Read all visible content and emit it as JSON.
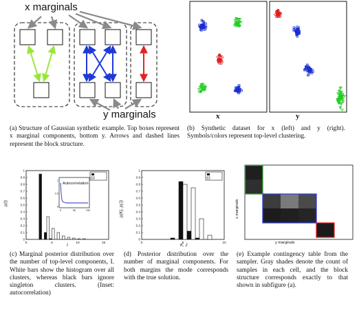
{
  "figure_a": {
    "top_label": "x marginals",
    "bottom_label": "y marginals",
    "caption": "(a) Structure of Gaussian synthetic example. Top boxes represent x marginal components, bottom y. Arrows and dashed lines represent the block structure."
  },
  "figure_b": {
    "x_label": "x",
    "y_label": "y",
    "caption": "(b) Synthetic dataset for x (left) and y (right). Symbols/colors represent top-level clustering."
  },
  "figure_c": {
    "ylabel": "p(I)",
    "xlabel": "I",
    "inset_title": "Autocorrelation",
    "caption": "(c) Marginal posterior distribution over the number of top-level components, I. White bars show the histogram over all clusters, whereas black bars ignore singleton clusters. (Inset: autocorrelation)",
    "chart_data": {
      "type": "bar",
      "categories": [
        "1",
        "2",
        "3",
        "4",
        "5",
        "6",
        "7",
        "8",
        "9",
        "10",
        "11",
        "12",
        "13",
        "14",
        "15"
      ],
      "series": [
        {
          "values": [
            0,
            0,
            0.95,
            0.1,
            0.01,
            0,
            0,
            0,
            0,
            0,
            0,
            0,
            0,
            0,
            0
          ]
        },
        {
          "values": [
            0,
            0,
            0,
            0.33,
            0.16,
            0.1,
            0.05,
            0.03,
            0.02,
            0.01,
            0.01,
            0,
            0,
            0,
            0
          ]
        }
      ],
      "ylim": [
        0,
        1
      ],
      "yticks": [
        "0",
        "0.1",
        "0.2",
        "0.3",
        "0.4",
        "0.5",
        "0.6",
        "0.7",
        "0.8",
        "0.9",
        "1"
      ],
      "xticks": [
        "0",
        "5",
        "10",
        "15"
      ],
      "inset": {
        "xticks": [
          "0",
          "50",
          "100"
        ],
        "yticks": [
          "0",
          "0.5",
          "1"
        ]
      }
    }
  },
  "figure_d": {
    "ylabel": "p(K), p(J)",
    "xlabel": "K, J",
    "caption": "(d) Posterior distribution over the number of marginal components. For both margins the mode corresponds with the true solution.",
    "chart_data": {
      "type": "bar",
      "categories": [
        "1",
        "2",
        "3",
        "4",
        "5",
        "6",
        "7",
        "8",
        "9",
        "10"
      ],
      "series": [
        {
          "values": [
            0,
            0,
            0,
            0.02,
            0.84,
            0.12,
            0.02,
            0,
            0,
            0
          ]
        },
        {
          "values": [
            0,
            0,
            0,
            0,
            0.8,
            0.75,
            0.3,
            0.06,
            0,
            0
          ]
        }
      ],
      "ylim": [
        0,
        1
      ],
      "yticks": [
        "0",
        "0.1",
        "0.2",
        "0.3",
        "0.4",
        "0.5",
        "0.6",
        "0.7",
        "0.8",
        "0.9",
        "1"
      ],
      "xticks": [
        "0",
        "5",
        "10"
      ]
    }
  },
  "figure_e": {
    "ylabel": "x marginals",
    "xlabel": "y marginals",
    "caption": "(e) Example contingency table from the sampler. Gray shades denote the count of samples in each cell, and the block structure corresponds exactly to that shown in subfigure (a).",
    "block_colors": [
      "#2e9e2e",
      "#2b3fd6",
      "#e02020"
    ]
  }
}
